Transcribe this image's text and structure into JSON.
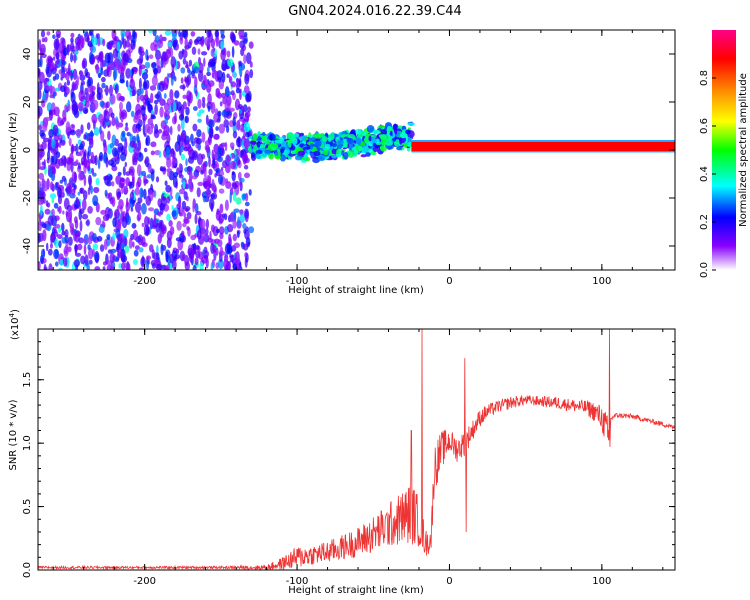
{
  "figure_title": "GN04.2024.016.22.39.C44",
  "chart_data": [
    {
      "type": "heatmap",
      "xlabel": "Height of straight line (km)",
      "ylabel": "Frequency (Hz)",
      "xlim": [
        -270,
        148
      ],
      "ylim": [
        -50,
        50
      ],
      "x_ticks": [
        -200,
        -100,
        0,
        100
      ],
      "y_ticks": [
        -40,
        -20,
        0,
        20,
        40
      ],
      "x_tick_labels": [
        "-200",
        "-100",
        "0",
        "100"
      ],
      "y_tick_labels": [
        "-40",
        "-20",
        "0",
        "20",
        "40"
      ],
      "colorbar": {
        "label": "Normalized spectral amplitude",
        "range": [
          0,
          1
        ],
        "ticks": [
          0.0,
          0.2,
          0.4,
          0.6,
          0.8
        ],
        "tick_labels": [
          "0.0",
          "0.2",
          "0.4",
          "0.6",
          "0.8"
        ],
        "colors": [
          "#ffffff",
          "#8800ff",
          "#0000ff",
          "#00ffff",
          "#00ff00",
          "#ffff00",
          "#ff8800",
          "#ff0000",
          "#ff0088"
        ]
      },
      "regions": [
        {
          "x_range": [
            -270,
            -130
          ],
          "freq_range": [
            -50,
            50
          ],
          "amplitude": "0.1-0.35",
          "pattern": "scattered noise"
        },
        {
          "x_range": [
            -130,
            -25
          ],
          "freq_center": [
            2,
            1,
            3,
            6
          ],
          "freq_halfwidth": 6,
          "amplitude": "0.2-0.5"
        },
        {
          "x_range": [
            -25,
            148
          ],
          "freq_center": 1.5,
          "freq_halfwidth": 2,
          "amplitude": "0.7-0.95"
        }
      ]
    },
    {
      "type": "line",
      "xlabel": "Height of straight line (km)",
      "ylabel": "SNR (10 * v/v)",
      "y_multiplier_label": "(x10",
      "y_multiplier_exp": "4",
      "xlim": [
        -270,
        148
      ],
      "ylim": [
        0,
        1.9
      ],
      "x_ticks": [
        -200,
        -100,
        0,
        100
      ],
      "y_ticks": [
        0.0,
        0.5,
        1.0,
        1.5
      ],
      "x_tick_labels": [
        "-200",
        "-100",
        "0",
        "100"
      ],
      "y_tick_labels": [
        "0.0",
        "0.5",
        "1.0",
        "1.5"
      ],
      "color": "#ee3333",
      "envelope": {
        "x": [
          -270,
          -200,
          -150,
          -120,
          -110,
          -100,
          -90,
          -80,
          -70,
          -60,
          -50,
          -40,
          -30,
          -25,
          -20,
          -15,
          -12,
          -10,
          -5,
          0,
          5,
          10,
          15,
          20,
          25,
          30,
          40,
          50,
          60,
          70,
          80,
          90,
          95,
          100,
          103,
          105,
          106,
          110,
          120,
          130,
          140,
          148
        ],
        "y": [
          0.02,
          0.02,
          0.02,
          0.02,
          0.05,
          0.1,
          0.12,
          0.14,
          0.18,
          0.22,
          0.28,
          0.35,
          0.42,
          0.45,
          0.38,
          0.2,
          0.25,
          0.8,
          0.95,
          1.02,
          0.95,
          1.0,
          1.1,
          1.2,
          1.25,
          1.28,
          1.32,
          1.34,
          1.33,
          1.32,
          1.3,
          1.28,
          1.25,
          1.2,
          1.1,
          0.95,
          1.2,
          1.22,
          1.21,
          1.18,
          1.15,
          1.12
        ],
        "noise": [
          0.01,
          0.01,
          0.01,
          0.02,
          0.05,
          0.09,
          0.08,
          0.09,
          0.1,
          0.12,
          0.15,
          0.18,
          0.22,
          0.25,
          0.2,
          0.1,
          0.1,
          0.2,
          0.15,
          0.1,
          0.1,
          0.1,
          0.08,
          0.07,
          0.06,
          0.05,
          0.05,
          0.04,
          0.04,
          0.05,
          0.05,
          0.06,
          0.08,
          0.1,
          0.15,
          0.2,
          0.03,
          0.02,
          0.02,
          0.02,
          0.02,
          0.02
        ]
      },
      "spikes": [
        {
          "x": -18,
          "y": 1.9
        },
        {
          "x": 10,
          "y": 1.67
        },
        {
          "x": 11,
          "y": 0.3
        },
        {
          "x": -25,
          "y": 1.1
        },
        {
          "x": 105,
          "y": 1.9
        }
      ]
    }
  ]
}
